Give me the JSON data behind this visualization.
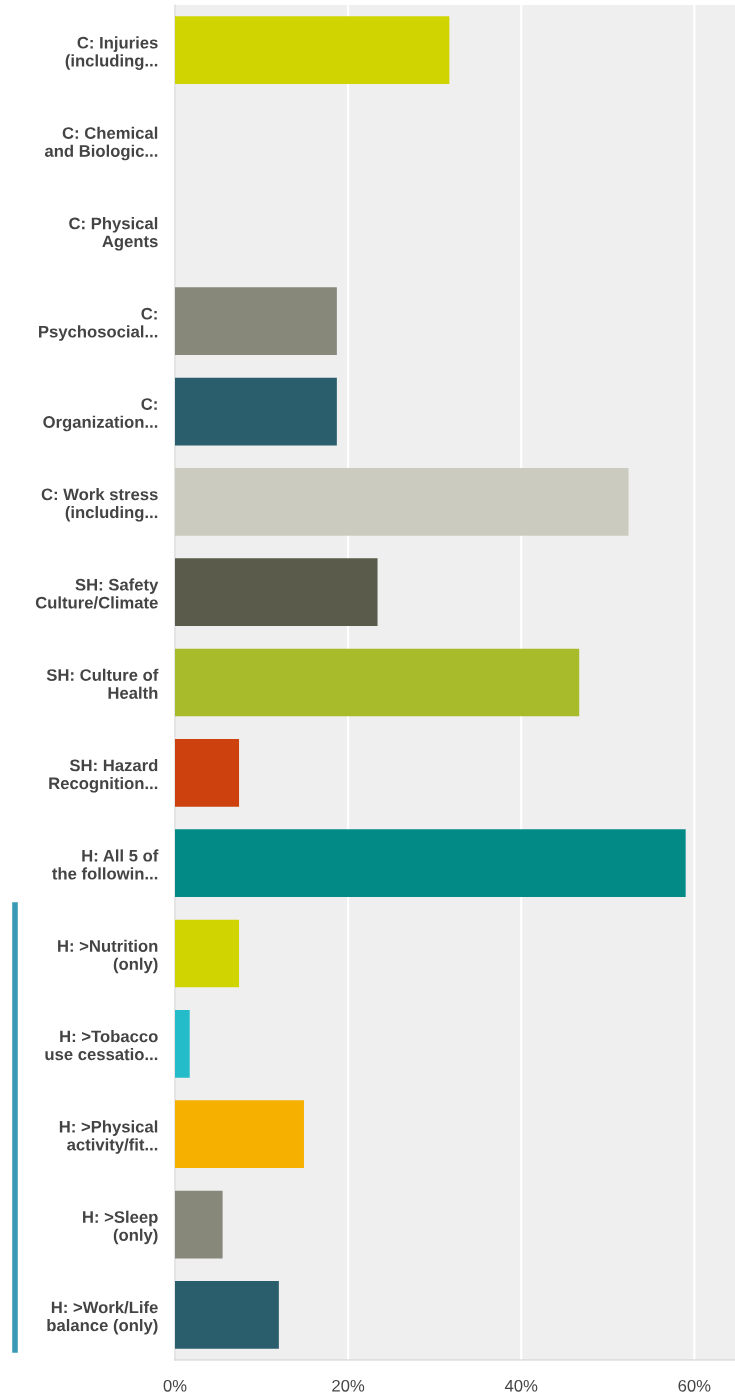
{
  "chart_data": {
    "type": "bar",
    "orientation": "horizontal",
    "categories": [
      "C: Injuries\n(including...",
      "C: Chemical\nand Biologic...",
      "C: Physical\nAgents",
      "C:\nPsychosocial...",
      "C:\nOrganization...",
      "C: Work stress\n(including...",
      "SH: Safety\nCulture/Climate",
      "SH: Culture of\nHealth",
      "SH: Hazard\nRecognition...",
      "H: All 5 of\nthe followin...",
      "H: >Nutrition\n(only)",
      "H: >Tobacco\nuse cessatio...",
      "H: >Physical\nactivity/fit...",
      "H: >Sleep\n(only)",
      "H: >Work/Life\nbalance (only)"
    ],
    "values": [
      31.7,
      0,
      0,
      18.7,
      18.7,
      52.4,
      23.4,
      46.7,
      7.4,
      59.0,
      7.4,
      1.7,
      14.9,
      5.5,
      12.0
    ],
    "colors": [
      "#d0d400",
      "#7f7f72",
      "#5aa9b8",
      "#87887a",
      "#2a5e6c",
      "#cbccbf",
      "#5a5b4a",
      "#a7bb2b",
      "#cc410d",
      "#028a87",
      "#d0d400",
      "#23bcc8",
      "#f5b000",
      "#87887a",
      "#2a5e6c"
    ],
    "xlim": [
      0,
      64.7
    ],
    "xticks": [
      {
        "value": 0,
        "label": "0%"
      },
      {
        "value": 20,
        "label": "20%"
      },
      {
        "value": 40,
        "label": "40%"
      },
      {
        "value": 60,
        "label": "60%"
      }
    ],
    "grid": "x"
  }
}
